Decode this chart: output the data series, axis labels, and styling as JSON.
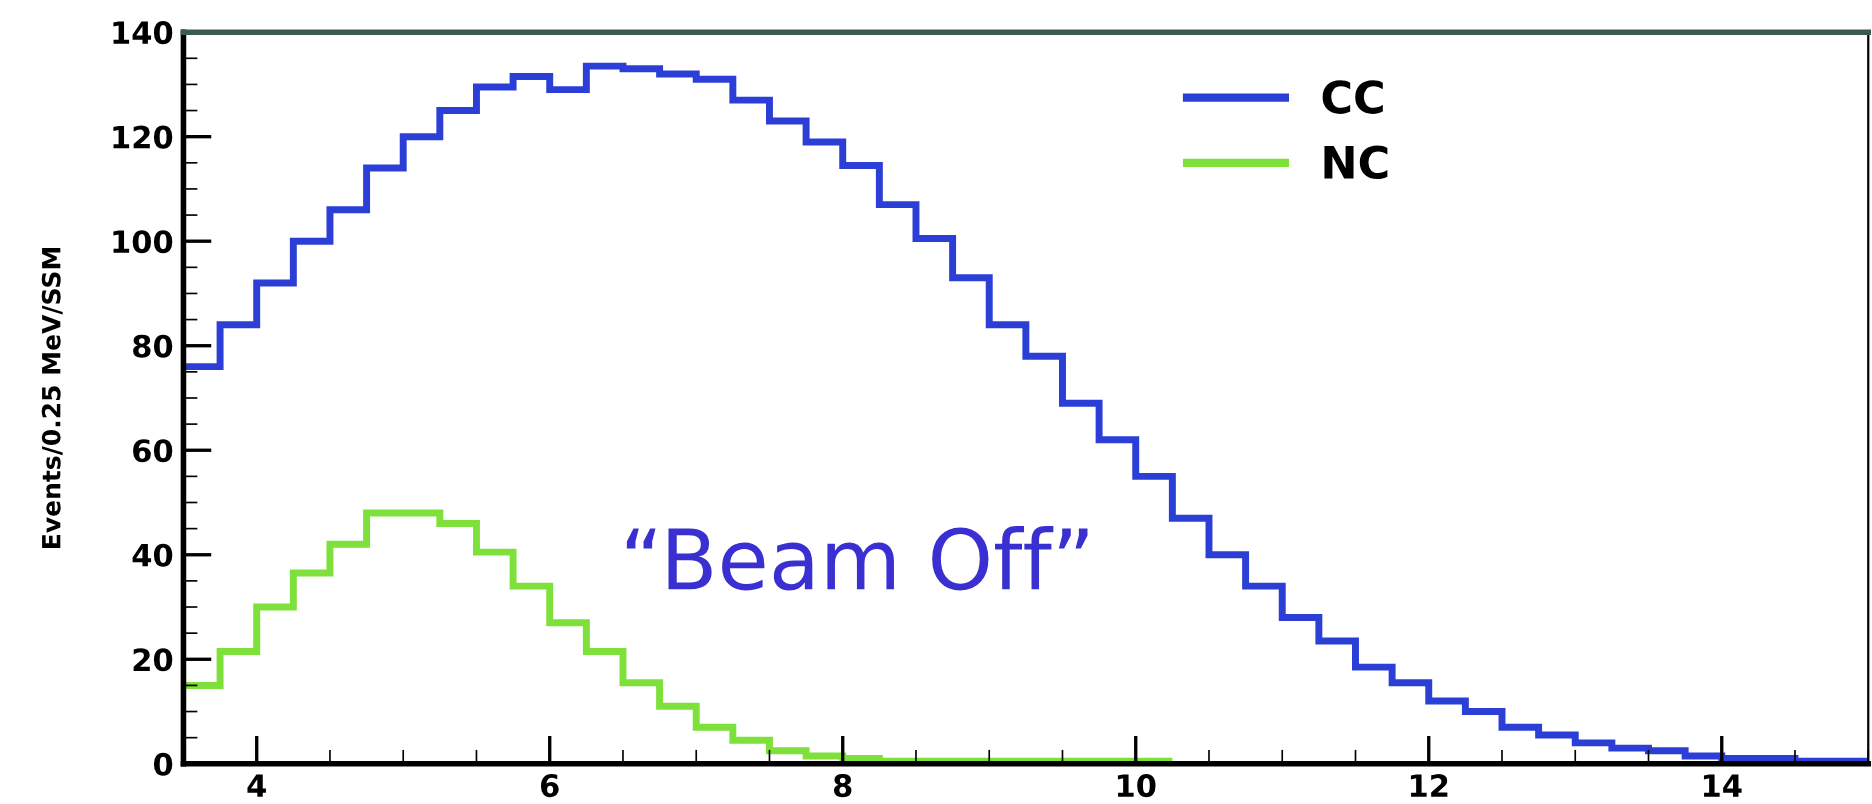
{
  "chart_data": {
    "type": "histogram",
    "ylabel": "Events/0.25 MeV/SSM",
    "bins": [
      3.5,
      3.75,
      4,
      4.25,
      4.5,
      4.75,
      5,
      5.25,
      5.5,
      5.75,
      6,
      6.25,
      6.5,
      6.75,
      7,
      7.25,
      7.5,
      7.75,
      8,
      8.25,
      8.5,
      8.75,
      9,
      9.25,
      9.5,
      9.75,
      10,
      10.25,
      10.5,
      10.75,
      11,
      11.25,
      11.5,
      11.75,
      12,
      12.25,
      12.5,
      12.75,
      13,
      13.25,
      13.5,
      13.75,
      14,
      14.25,
      14.5,
      14.75,
      15
    ],
    "series": [
      {
        "name": "CC",
        "color": "#2b3fd6",
        "values": [
          76,
          84,
          92,
          100,
          106,
          114,
          120,
          125,
          129.5,
          131.5,
          129,
          133.5,
          133,
          132,
          131,
          127,
          123,
          119,
          114.5,
          107,
          100.5,
          93,
          84,
          78,
          69,
          62,
          55,
          47,
          40,
          34,
          28,
          23.5,
          18.5,
          15.5,
          12,
          10,
          7,
          5.5,
          4,
          3,
          2.5,
          1.5,
          1,
          1,
          0.5,
          0.5
        ]
      },
      {
        "name": "NC",
        "color": "#7ee03a",
        "values": [
          15,
          21.5,
          30,
          36.5,
          42,
          48,
          48,
          46,
          40.5,
          34,
          27,
          21.5,
          15.5,
          11,
          7,
          4.5,
          2.5,
          1.5,
          1,
          0.5,
          0.5,
          0.5,
          0.5,
          0.5,
          0.5,
          0.5,
          0.5
        ],
        "bins": [
          3.5,
          3.75,
          4,
          4.25,
          4.5,
          4.75,
          5,
          5.25,
          5.5,
          5.75,
          6,
          6.25,
          6.5,
          6.75,
          7,
          7.25,
          7.5,
          7.75,
          8,
          8.25,
          8.5,
          8.75,
          9,
          9.25,
          9.5,
          9.75,
          10,
          10.25
        ]
      }
    ],
    "xlim": [
      3.5,
      15
    ],
    "xticks": [
      4,
      6,
      8,
      10,
      12,
      14
    ],
    "ylim": [
      0,
      140
    ],
    "yticks": [
      0,
      20,
      40,
      60,
      80,
      100,
      120,
      140
    ],
    "legend": "top right",
    "grid": false,
    "annotations": [
      "“Beam Off”"
    ]
  }
}
